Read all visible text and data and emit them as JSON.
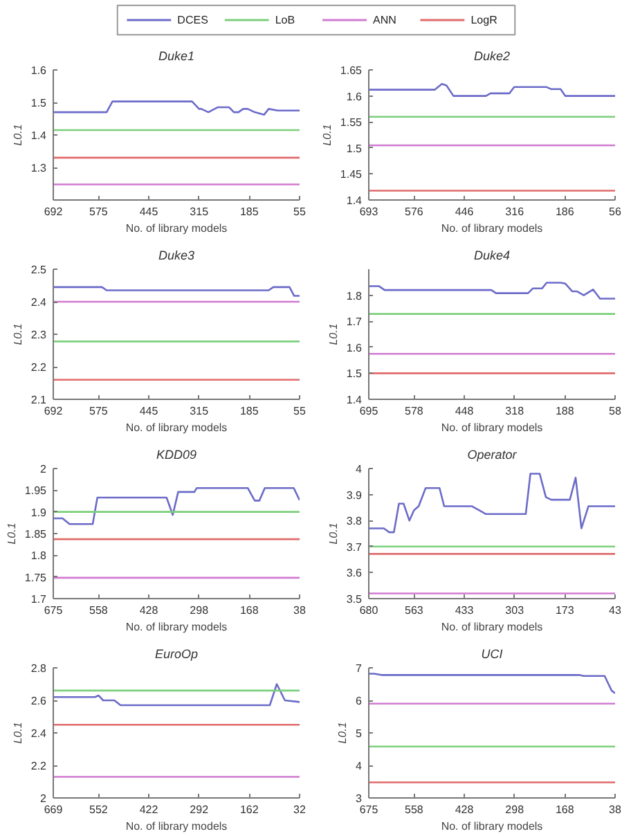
{
  "chart_data": [
    {
      "type": "line",
      "title": "Duke1",
      "xlabel": "No. of library models",
      "ylabel": "L0.1",
      "legend": "top",
      "xlim": [
        692,
        55
      ],
      "xticks": [
        692,
        575,
        445,
        315,
        185,
        55
      ],
      "ylim": [
        1.2,
        1.6
      ],
      "yticks": [
        1.3,
        1.4,
        1.5,
        1.6
      ],
      "series": [
        {
          "name": "DCES",
          "color": "#6b6bc9",
          "x": [
            692,
            554,
            539,
            333,
            315,
            309,
            291,
            267,
            237,
            225,
            213,
            201,
            189,
            171,
            147,
            135,
            111,
            55
          ],
          "values": [
            1.47,
            1.47,
            1.503,
            1.503,
            1.48,
            1.48,
            1.47,
            1.485,
            1.485,
            1.47,
            1.47,
            1.48,
            1.48,
            1.47,
            1.462,
            1.48,
            1.475,
            1.475
          ]
        },
        {
          "name": "LoB",
          "color": "#7ccf7c",
          "x": [
            692,
            55
          ],
          "values": [
            1.415,
            1.415
          ]
        },
        {
          "name": "ANN",
          "color": "#d07ad0",
          "x": [
            692,
            55
          ],
          "values": [
            1.248,
            1.248
          ]
        },
        {
          "name": "LogR",
          "color": "#e06a6a",
          "x": [
            692,
            55
          ],
          "values": [
            1.33,
            1.33
          ]
        }
      ]
    },
    {
      "type": "line",
      "title": "Duke2",
      "xlabel": "No. of library models",
      "ylabel": "L0.1",
      "xlim": [
        693,
        56
      ],
      "xticks": [
        693,
        576,
        446,
        316,
        186,
        56
      ],
      "ylim": [
        1.4,
        1.65
      ],
      "yticks": [
        1.4,
        1.45,
        1.5,
        1.55,
        1.6,
        1.65
      ],
      "series": [
        {
          "color": "#6b6bc9",
          "x": [
            693,
            522,
            504,
            492,
            474,
            390,
            378,
            329,
            317,
            233,
            221,
            197,
            185,
            56
          ],
          "values": [
            1.612,
            1.612,
            1.623,
            1.62,
            1.6,
            1.6,
            1.605,
            1.605,
            1.617,
            1.617,
            1.613,
            1.613,
            1.6,
            1.6
          ]
        },
        {
          "color": "#7ccf7c",
          "x": [
            693,
            56
          ],
          "values": [
            1.56,
            1.56
          ]
        },
        {
          "color": "#d07ad0",
          "x": [
            693,
            56
          ],
          "values": [
            1.505,
            1.505
          ]
        },
        {
          "color": "#e06a6a",
          "x": [
            693,
            56
          ],
          "values": [
            1.418,
            1.418
          ]
        }
      ]
    },
    {
      "type": "line",
      "title": "Duke3",
      "xlabel": "No. of library models",
      "ylabel": "L0.1",
      "xlim": [
        692,
        55
      ],
      "xticks": [
        692,
        575,
        445,
        315,
        185,
        55
      ],
      "ylim": [
        2.1,
        2.5
      ],
      "yticks": [
        2.1,
        2.2,
        2.3,
        2.4,
        2.5
      ],
      "series": [
        {
          "color": "#6b6bc9",
          "x": [
            692,
            566,
            554,
            135,
            123,
            81,
            69,
            55
          ],
          "values": [
            2.445,
            2.445,
            2.435,
            2.435,
            2.445,
            2.445,
            2.418,
            2.418
          ]
        },
        {
          "color": "#7ccf7c",
          "x": [
            692,
            55
          ],
          "values": [
            2.278,
            2.278
          ]
        },
        {
          "color": "#d07ad0",
          "x": [
            692,
            55
          ],
          "values": [
            2.4,
            2.4
          ]
        },
        {
          "color": "#e06a6a",
          "x": [
            692,
            55
          ],
          "values": [
            2.16,
            2.16
          ]
        }
      ]
    },
    {
      "type": "line",
      "title": "Duke4",
      "xlabel": "No. of library models",
      "ylabel": "L0.1",
      "xlim": [
        695,
        58
      ],
      "xticks": [
        695,
        578,
        448,
        318,
        188,
        58
      ],
      "ylim": [
        1.4,
        1.9
      ],
      "yticks": [
        1.4,
        1.5,
        1.6,
        1.7,
        1.8
      ],
      "series": [
        {
          "color": "#6b6bc9",
          "x": [
            695,
            669,
            654,
            414,
            378,
            366,
            283,
            271,
            247,
            235,
            199,
            187,
            169,
            157,
            139,
            115,
            97,
            58
          ],
          "values": [
            1.835,
            1.835,
            1.82,
            1.82,
            1.82,
            1.808,
            1.808,
            1.826,
            1.826,
            1.848,
            1.848,
            1.845,
            1.815,
            1.815,
            1.8,
            1.822,
            1.787,
            1.787
          ]
        },
        {
          "color": "#7ccf7c",
          "x": [
            695,
            58
          ],
          "values": [
            1.728,
            1.728
          ]
        },
        {
          "color": "#d07ad0",
          "x": [
            695,
            58
          ],
          "values": [
            1.575,
            1.575
          ]
        },
        {
          "color": "#e06a6a",
          "x": [
            695,
            58
          ],
          "values": [
            1.5,
            1.5
          ]
        }
      ]
    },
    {
      "type": "line",
      "title": "KDD09",
      "xlabel": "No. of library models",
      "ylabel": "L0.1",
      "xlim": [
        675,
        38
      ],
      "xticks": [
        675,
        558,
        428,
        298,
        168,
        38
      ],
      "ylim": [
        1.7,
        2
      ],
      "yticks": [
        1.7,
        1.75,
        1.8,
        1.85,
        1.9,
        1.95,
        2
      ],
      "series": [
        {
          "color": "#6b6bc9",
          "x": [
            675,
            651,
            633,
            573,
            561,
            382,
            366,
            352,
            310,
            304,
            172,
            154,
            142,
            128,
            53,
            38
          ],
          "values": [
            1.885,
            1.885,
            1.872,
            1.872,
            1.933,
            1.933,
            1.893,
            1.946,
            1.946,
            1.955,
            1.955,
            1.926,
            1.926,
            1.955,
            1.955,
            1.927
          ]
        },
        {
          "color": "#7ccf7c",
          "x": [
            675,
            38
          ],
          "values": [
            1.9,
            1.9
          ]
        },
        {
          "color": "#d07ad0",
          "x": [
            675,
            38
          ],
          "values": [
            1.748,
            1.748
          ]
        },
        {
          "color": "#e06a6a",
          "x": [
            675,
            38
          ],
          "values": [
            1.837,
            1.837
          ]
        }
      ]
    },
    {
      "type": "line",
      "title": "Operator",
      "xlabel": "No. of library models",
      "ylabel": "L0.1",
      "xlim": [
        680,
        43
      ],
      "xticks": [
        680,
        563,
        433,
        303,
        173,
        43
      ],
      "ylim": [
        3.5,
        4
      ],
      "yticks": [
        3.5,
        3.6,
        3.7,
        3.8,
        3.9,
        4
      ],
      "series": [
        {
          "color": "#6b6bc9",
          "x": [
            680,
            641,
            627,
            615,
            602,
            590,
            575,
            563,
            551,
            533,
            497,
            485,
            413,
            395,
            377,
            274,
            262,
            238,
            222,
            208,
            160,
            145,
            130,
            112,
            43
          ],
          "values": [
            3.77,
            3.77,
            3.755,
            3.755,
            3.865,
            3.865,
            3.8,
            3.84,
            3.855,
            3.925,
            3.925,
            3.855,
            3.855,
            3.84,
            3.825,
            3.825,
            3.98,
            3.98,
            3.89,
            3.88,
            3.88,
            3.965,
            3.77,
            3.855,
            3.855
          ]
        },
        {
          "color": "#7ccf7c",
          "x": [
            680,
            43
          ],
          "values": [
            3.7,
            3.7
          ]
        },
        {
          "color": "#d07ad0",
          "x": [
            680,
            43
          ],
          "values": [
            3.52,
            3.52
          ]
        },
        {
          "color": "#e06a6a",
          "x": [
            680,
            43
          ],
          "values": [
            3.672,
            3.672
          ]
        }
      ]
    },
    {
      "type": "line",
      "title": "EuroOp",
      "xlabel": "No. of library models",
      "ylabel": "L0.1",
      "xlim": [
        669,
        32
      ],
      "xticks": [
        669,
        552,
        422,
        292,
        162,
        32
      ],
      "ylim": [
        2,
        2.8
      ],
      "yticks": [
        2,
        2.2,
        2.4,
        2.6,
        2.8
      ],
      "series": [
        {
          "color": "#6b6bc9",
          "x": [
            669,
            561,
            552,
            540,
            531,
            519,
            511,
            495,
            109,
            91,
            70,
            32
          ],
          "values": [
            2.62,
            2.62,
            2.63,
            2.6,
            2.6,
            2.6,
            2.6,
            2.57,
            2.57,
            2.7,
            2.6,
            2.59
          ]
        },
        {
          "color": "#7ccf7c",
          "x": [
            669,
            32
          ],
          "values": [
            2.66,
            2.66
          ]
        },
        {
          "color": "#d07ad0",
          "x": [
            669,
            32
          ],
          "values": [
            2.13,
            2.13
          ]
        },
        {
          "color": "#e06a6a",
          "x": [
            669,
            32
          ],
          "values": [
            2.45,
            2.45
          ]
        }
      ]
    },
    {
      "type": "line",
      "title": "UCI",
      "xlabel": "No. of library models",
      "ylabel": "L0.1",
      "xlim": [
        675,
        38
      ],
      "xticks": [
        675,
        558,
        428,
        298,
        168,
        38
      ],
      "ylim": [
        3,
        7
      ],
      "yticks": [
        3,
        4,
        5,
        6,
        7
      ],
      "series": [
        {
          "color": "#6b6bc9",
          "x": [
            675,
            661,
            643,
            131,
            119,
            65,
            55,
            47,
            38
          ],
          "values": [
            6.82,
            6.82,
            6.78,
            6.78,
            6.75,
            6.75,
            6.5,
            6.3,
            6.22
          ]
        },
        {
          "color": "#7ccf7c",
          "x": [
            675,
            38
          ],
          "values": [
            4.58,
            4.58
          ]
        },
        {
          "color": "#d07ad0",
          "x": [
            675,
            38
          ],
          "values": [
            5.9,
            5.9
          ]
        },
        {
          "color": "#e06a6a",
          "x": [
            675,
            38
          ],
          "values": [
            3.48,
            3.48
          ]
        }
      ]
    }
  ]
}
